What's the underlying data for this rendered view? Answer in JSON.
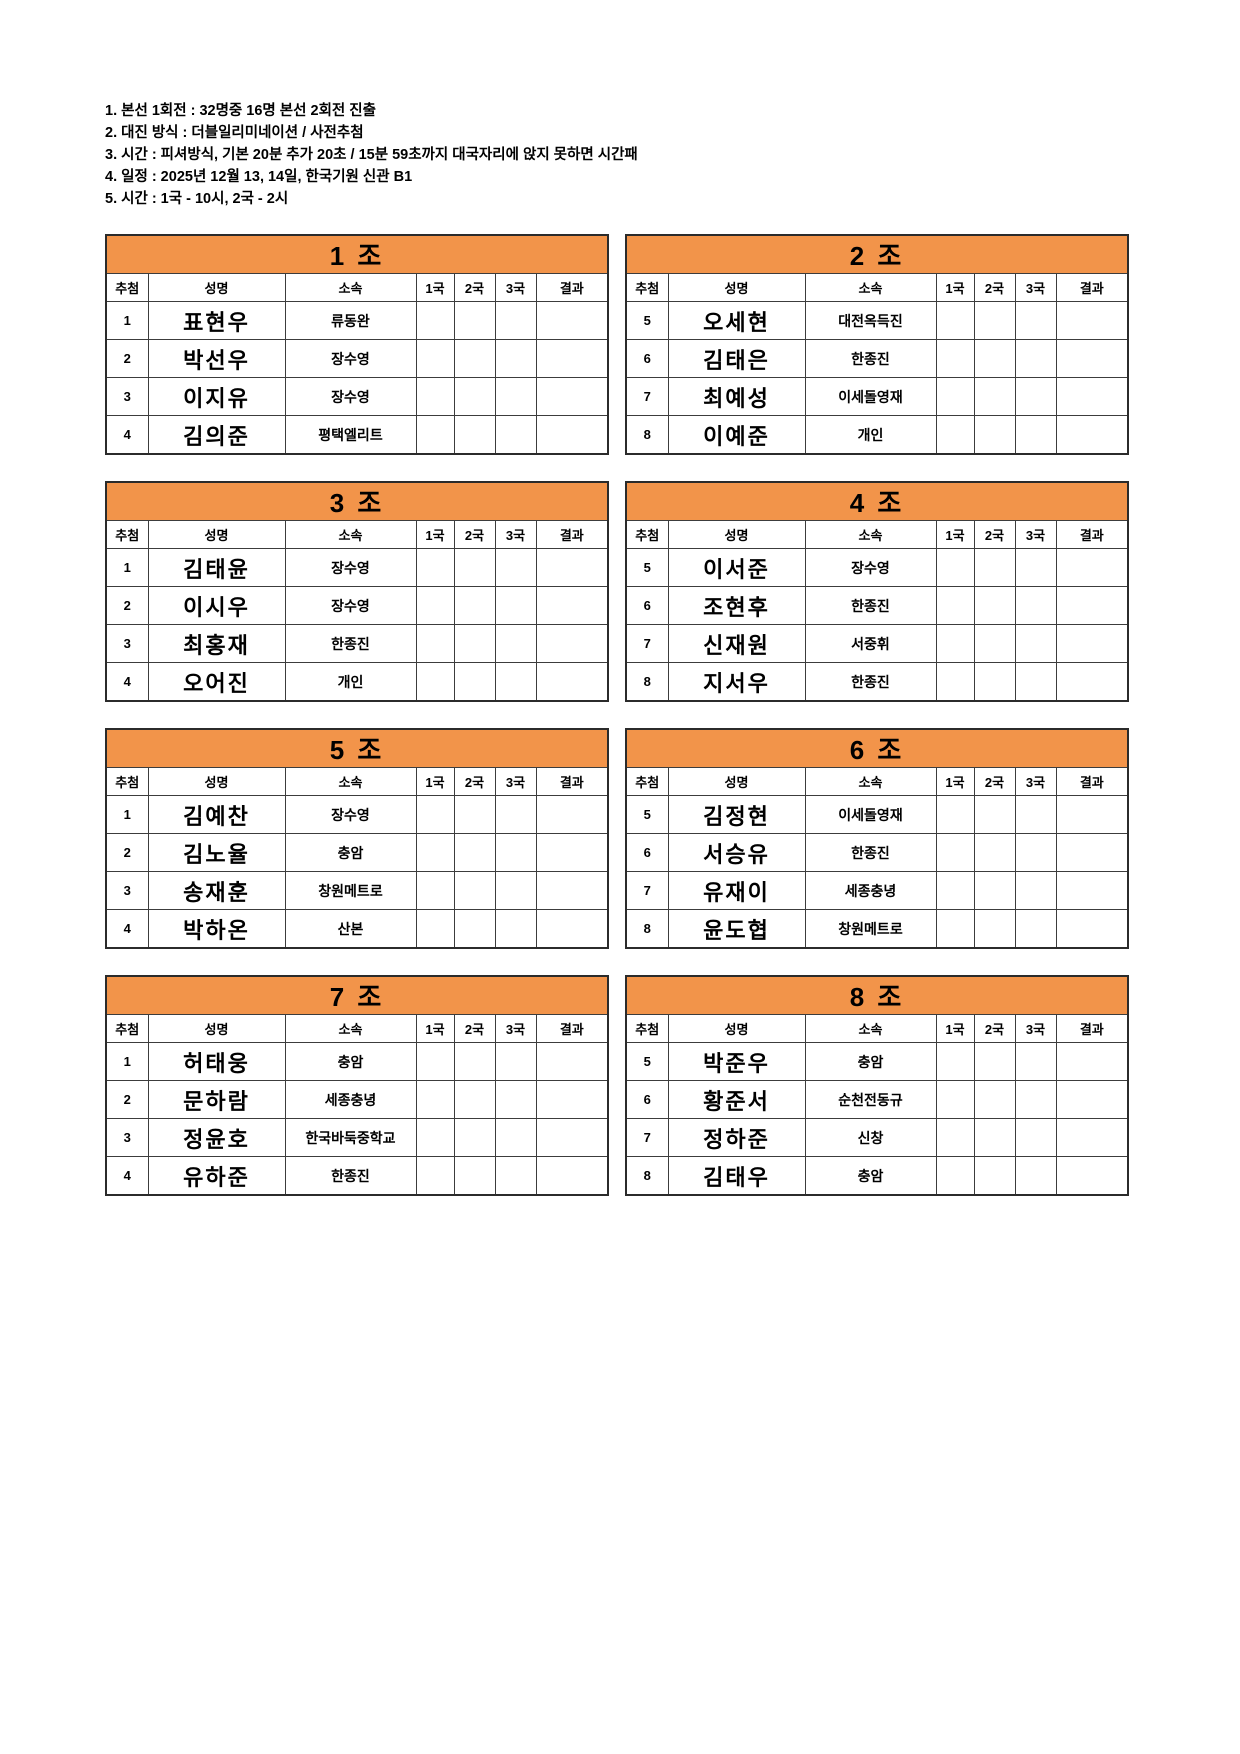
{
  "colors": {
    "header_orange": "#F2944A"
  },
  "intro": {
    "lines": [
      "1. 본선 1회전 : 32명중 16명 본선 2회전 진출",
      "2. 대진 방식 : 더블일리미네이션 / 사전추첨",
      "3. 시간 : 피셔방식, 기본 20분 추가 20초 / 15분 59초까지 대국자리에 앉지 못하면 시간패",
      "4. 일정 : 2025년 12월 13, 14일, 한국기원 신관 B1",
      "5. 시간 : 1국 - 10시, 2국 - 2시"
    ]
  },
  "table": {
    "columns": [
      "추첨",
      "성명",
      "소속",
      "1국",
      "2국",
      "3국",
      "결과"
    ]
  },
  "groups": [
    {
      "title": "1 조",
      "rows": [
        {
          "draw": "1",
          "name": "표현우",
          "club": "류동완",
          "g1": "",
          "g2": "",
          "g3": "",
          "result": ""
        },
        {
          "draw": "2",
          "name": "박선우",
          "club": "장수영",
          "g1": "",
          "g2": "",
          "g3": "",
          "result": ""
        },
        {
          "draw": "3",
          "name": "이지유",
          "club": "장수영",
          "g1": "",
          "g2": "",
          "g3": "",
          "result": ""
        },
        {
          "draw": "4",
          "name": "김의준",
          "club": "평택엘리트",
          "g1": "",
          "g2": "",
          "g3": "",
          "result": ""
        }
      ]
    },
    {
      "title": "2 조",
      "rows": [
        {
          "draw": "5",
          "name": "오세현",
          "club": "대전옥득진",
          "g1": "",
          "g2": "",
          "g3": "",
          "result": ""
        },
        {
          "draw": "6",
          "name": "김태은",
          "club": "한종진",
          "g1": "",
          "g2": "",
          "g3": "",
          "result": ""
        },
        {
          "draw": "7",
          "name": "최예성",
          "club": "이세돌영재",
          "g1": "",
          "g2": "",
          "g3": "",
          "result": ""
        },
        {
          "draw": "8",
          "name": "이예준",
          "club": "개인",
          "g1": "",
          "g2": "",
          "g3": "",
          "result": ""
        }
      ]
    },
    {
      "title": "3 조",
      "rows": [
        {
          "draw": "1",
          "name": "김태윤",
          "club": "장수영",
          "g1": "",
          "g2": "",
          "g3": "",
          "result": ""
        },
        {
          "draw": "2",
          "name": "이시우",
          "club": "장수영",
          "g1": "",
          "g2": "",
          "g3": "",
          "result": ""
        },
        {
          "draw": "3",
          "name": "최홍재",
          "club": "한종진",
          "g1": "",
          "g2": "",
          "g3": "",
          "result": ""
        },
        {
          "draw": "4",
          "name": "오어진",
          "club": "개인",
          "g1": "",
          "g2": "",
          "g3": "",
          "result": ""
        }
      ]
    },
    {
      "title": "4 조",
      "rows": [
        {
          "draw": "5",
          "name": "이서준",
          "club": "장수영",
          "g1": "",
          "g2": "",
          "g3": "",
          "result": ""
        },
        {
          "draw": "6",
          "name": "조현후",
          "club": "한종진",
          "g1": "",
          "g2": "",
          "g3": "",
          "result": ""
        },
        {
          "draw": "7",
          "name": "신재원",
          "club": "서중휘",
          "g1": "",
          "g2": "",
          "g3": "",
          "result": ""
        },
        {
          "draw": "8",
          "name": "지서우",
          "club": "한종진",
          "g1": "",
          "g2": "",
          "g3": "",
          "result": ""
        }
      ]
    },
    {
      "title": "5 조",
      "rows": [
        {
          "draw": "1",
          "name": "김예찬",
          "club": "장수영",
          "g1": "",
          "g2": "",
          "g3": "",
          "result": ""
        },
        {
          "draw": "2",
          "name": "김노율",
          "club": "충암",
          "g1": "",
          "g2": "",
          "g3": "",
          "result": ""
        },
        {
          "draw": "3",
          "name": "송재훈",
          "club": "창원메트로",
          "g1": "",
          "g2": "",
          "g3": "",
          "result": ""
        },
        {
          "draw": "4",
          "name": "박하온",
          "club": "산본",
          "g1": "",
          "g2": "",
          "g3": "",
          "result": ""
        }
      ]
    },
    {
      "title": "6 조",
      "rows": [
        {
          "draw": "5",
          "name": "김정현",
          "club": "이세돌영재",
          "g1": "",
          "g2": "",
          "g3": "",
          "result": ""
        },
        {
          "draw": "6",
          "name": "서승유",
          "club": "한종진",
          "g1": "",
          "g2": "",
          "g3": "",
          "result": ""
        },
        {
          "draw": "7",
          "name": "유재이",
          "club": "세종충녕",
          "g1": "",
          "g2": "",
          "g3": "",
          "result": ""
        },
        {
          "draw": "8",
          "name": "윤도협",
          "club": "창원메트로",
          "g1": "",
          "g2": "",
          "g3": "",
          "result": ""
        }
      ]
    },
    {
      "title": "7 조",
      "rows": [
        {
          "draw": "1",
          "name": "허태웅",
          "club": "충암",
          "g1": "",
          "g2": "",
          "g3": "",
          "result": ""
        },
        {
          "draw": "2",
          "name": "문하람",
          "club": "세종충녕",
          "g1": "",
          "g2": "",
          "g3": "",
          "result": ""
        },
        {
          "draw": "3",
          "name": "정윤호",
          "club": "한국바둑중학교",
          "g1": "",
          "g2": "",
          "g3": "",
          "result": ""
        },
        {
          "draw": "4",
          "name": "유하준",
          "club": "한종진",
          "g1": "",
          "g2": "",
          "g3": "",
          "result": ""
        }
      ]
    },
    {
      "title": "8 조",
      "rows": [
        {
          "draw": "5",
          "name": "박준우",
          "club": "충암",
          "g1": "",
          "g2": "",
          "g3": "",
          "result": ""
        },
        {
          "draw": "6",
          "name": "황준서",
          "club": "순천전동규",
          "g1": "",
          "g2": "",
          "g3": "",
          "result": ""
        },
        {
          "draw": "7",
          "name": "정하준",
          "club": "신창",
          "g1": "",
          "g2": "",
          "g3": "",
          "result": ""
        },
        {
          "draw": "8",
          "name": "김태우",
          "club": "충암",
          "g1": "",
          "g2": "",
          "g3": "",
          "result": ""
        }
      ]
    }
  ]
}
